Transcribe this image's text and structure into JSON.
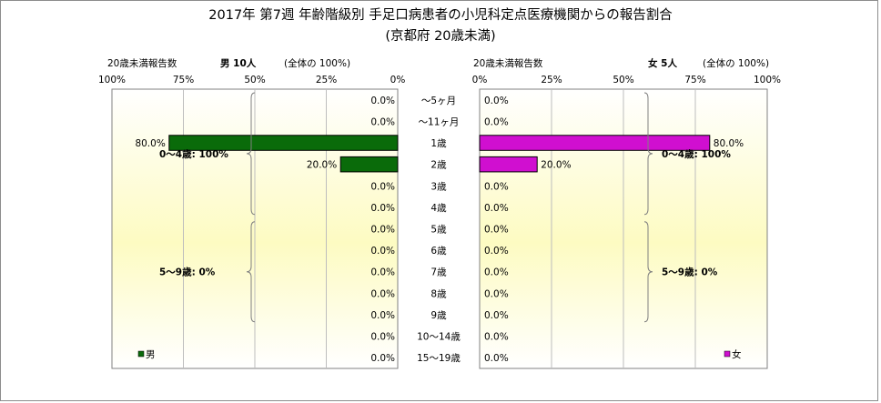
{
  "chart_data": {
    "type": "bar",
    "title": "2017年 第7週 年齢階級別 手足口病患者の小児科定点医療機関からの報告割合",
    "subtitle": "(京都府 20歳未満)",
    "categories": [
      "～5ヶ月",
      "～11ヶ月",
      "1歳",
      "2歳",
      "3歳",
      "4歳",
      "5歳",
      "6歳",
      "7歳",
      "8歳",
      "9歳",
      "10～14歳",
      "15～19歳"
    ],
    "xlim": [
      0,
      100
    ],
    "ticks": [
      "0%",
      "25%",
      "50%",
      "75%",
      "100%"
    ],
    "series": [
      {
        "name": "男",
        "header_label": "20歳未満報告数",
        "header_value": "男  10人",
        "header_total": "(全体の  100%)",
        "color": "#0a6b0a",
        "values": [
          0,
          0,
          80,
          20,
          0,
          0,
          0,
          0,
          0,
          0,
          0,
          0,
          0
        ],
        "labels": [
          "0.0%",
          "0.0%",
          "80.0%",
          "20.0%",
          "0.0%",
          "0.0%",
          "0.0%",
          "0.0%",
          "0.0%",
          "0.0%",
          "0.0%",
          "0.0%",
          "0.0%"
        ]
      },
      {
        "name": "女",
        "header_label": "20歳未満報告数",
        "header_value": "女  5人",
        "header_total": "(全体の  100%)",
        "color": "#d00fd0",
        "values": [
          0,
          0,
          80,
          20,
          0,
          0,
          0,
          0,
          0,
          0,
          0,
          0,
          0
        ],
        "labels": [
          "0.0%",
          "0.0%",
          "80.0%",
          "20.0%",
          "0.0%",
          "0.0%",
          "0.0%",
          "0.0%",
          "0.0%",
          "0.0%",
          "0.0%",
          "0.0%",
          "0.0%"
        ]
      }
    ],
    "groups": [
      {
        "label": "0～4歳: 100%",
        "from": 0,
        "to": 5
      },
      {
        "label": "5～9歳: 0%",
        "from": 6,
        "to": 10
      }
    ],
    "legend": [
      "男",
      "女"
    ],
    "legend_position": "bottom-left / bottom-left",
    "grid": true,
    "background": "vertical gradient white-yellow-white"
  }
}
